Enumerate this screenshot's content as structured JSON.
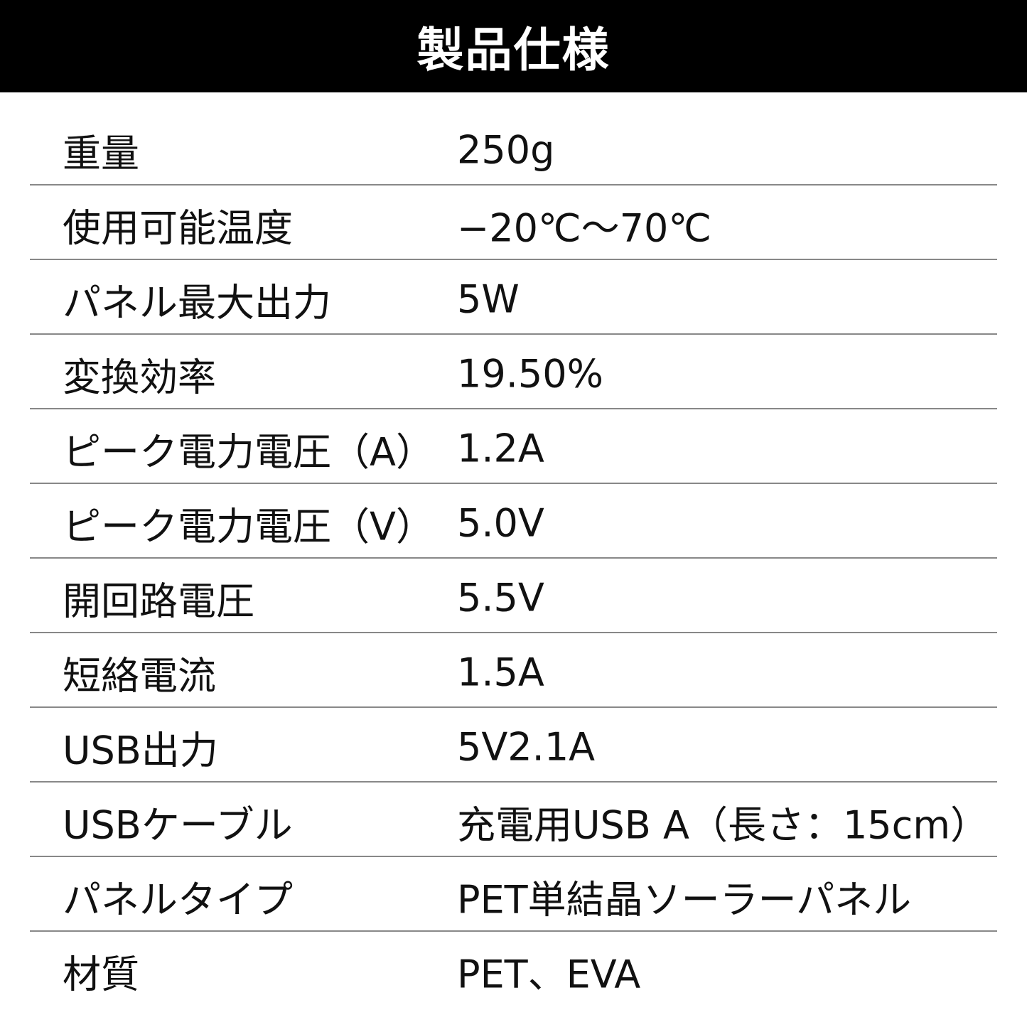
{
  "title": "製品仕様",
  "specs": [
    {
      "label": "重量",
      "value": "250g"
    },
    {
      "label": "使用可能温度",
      "value": "−20℃〜70℃"
    },
    {
      "label": "パネル最大出力",
      "value": "5W"
    },
    {
      "label": "変換効率",
      "value": "19.50%"
    },
    {
      "label": "ピーク電力電圧（A）",
      "value": "1.2A"
    },
    {
      "label": "ピーク電力電圧（V）",
      "value": "5.0V"
    },
    {
      "label": "開回路電圧",
      "value": "5.5V"
    },
    {
      "label": "短絡電流",
      "value": "1.5A"
    },
    {
      "label": "USB出力",
      "value": "5V2.1A"
    },
    {
      "label": "USBケーブル",
      "value": "充電用USB A（長さ：15cm）"
    },
    {
      "label": "パネルタイプ",
      "value": "PET単結晶ソーラーパネル"
    },
    {
      "label": "材質",
      "value": "PET、EVA"
    }
  ]
}
